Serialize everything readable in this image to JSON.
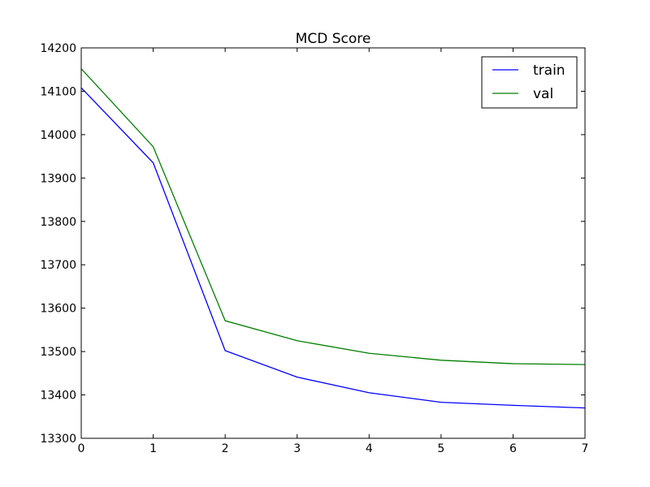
{
  "chart_data": {
    "type": "line",
    "title": "MCD Score",
    "xlabel": "",
    "ylabel": "",
    "xlim": [
      0,
      7
    ],
    "ylim": [
      13300,
      14200
    ],
    "xticks": [
      0,
      1,
      2,
      3,
      4,
      5,
      6,
      7
    ],
    "yticks": [
      13300,
      13400,
      13500,
      13600,
      13700,
      13800,
      13900,
      14000,
      14100,
      14200
    ],
    "grid": false,
    "legend_position": "top-right",
    "x": [
      0,
      1,
      2,
      3,
      4,
      5,
      6,
      7
    ],
    "series": [
      {
        "name": "train",
        "color": "#0000ff",
        "values": [
          14108,
          13935,
          13502,
          13441,
          13405,
          13383,
          13376,
          13370
        ]
      },
      {
        "name": "val",
        "color": "#008000",
        "values": [
          14152,
          13972,
          13571,
          13525,
          13496,
          13480,
          13472,
          13470
        ]
      }
    ]
  }
}
